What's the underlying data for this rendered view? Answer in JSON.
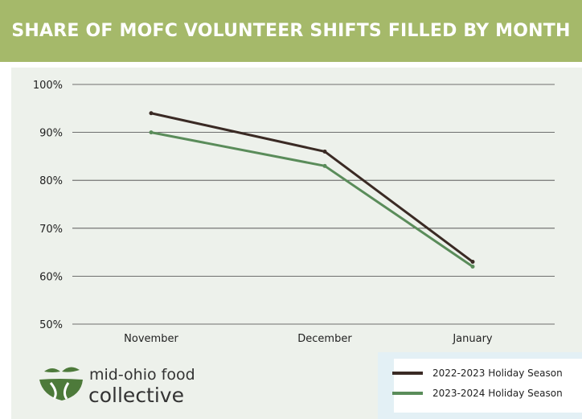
{
  "title": "SHARE OF MOFC VOLUNTEER SHIFTS FILLED BY MONTH",
  "colors": {
    "title_bar": "#a5b96a",
    "panel": "#edf1eb",
    "series_2022": "#3a2a24",
    "series_2023": "#5a8c5a",
    "logo_green": "#4d7a3a"
  },
  "logo": {
    "line1": "mid-ohio food",
    "line2": "collective",
    "icon": "bowl-sprout-icon"
  },
  "chart_data": {
    "type": "line",
    "categories": [
      "November",
      "December",
      "January"
    ],
    "series": [
      {
        "name": "2022-2023 Holiday Season",
        "values": [
          94,
          86,
          63
        ],
        "color": "#3a2a24"
      },
      {
        "name": "2023-2024 Holiday Season",
        "values": [
          90,
          83,
          62
        ],
        "color": "#5a8c5a"
      }
    ],
    "y_ticks": [
      "100%",
      "90%",
      "80%",
      "70%",
      "60%",
      "50%"
    ],
    "ylim": [
      50,
      100
    ],
    "grid": true,
    "legend_placement": "bottom-right"
  }
}
